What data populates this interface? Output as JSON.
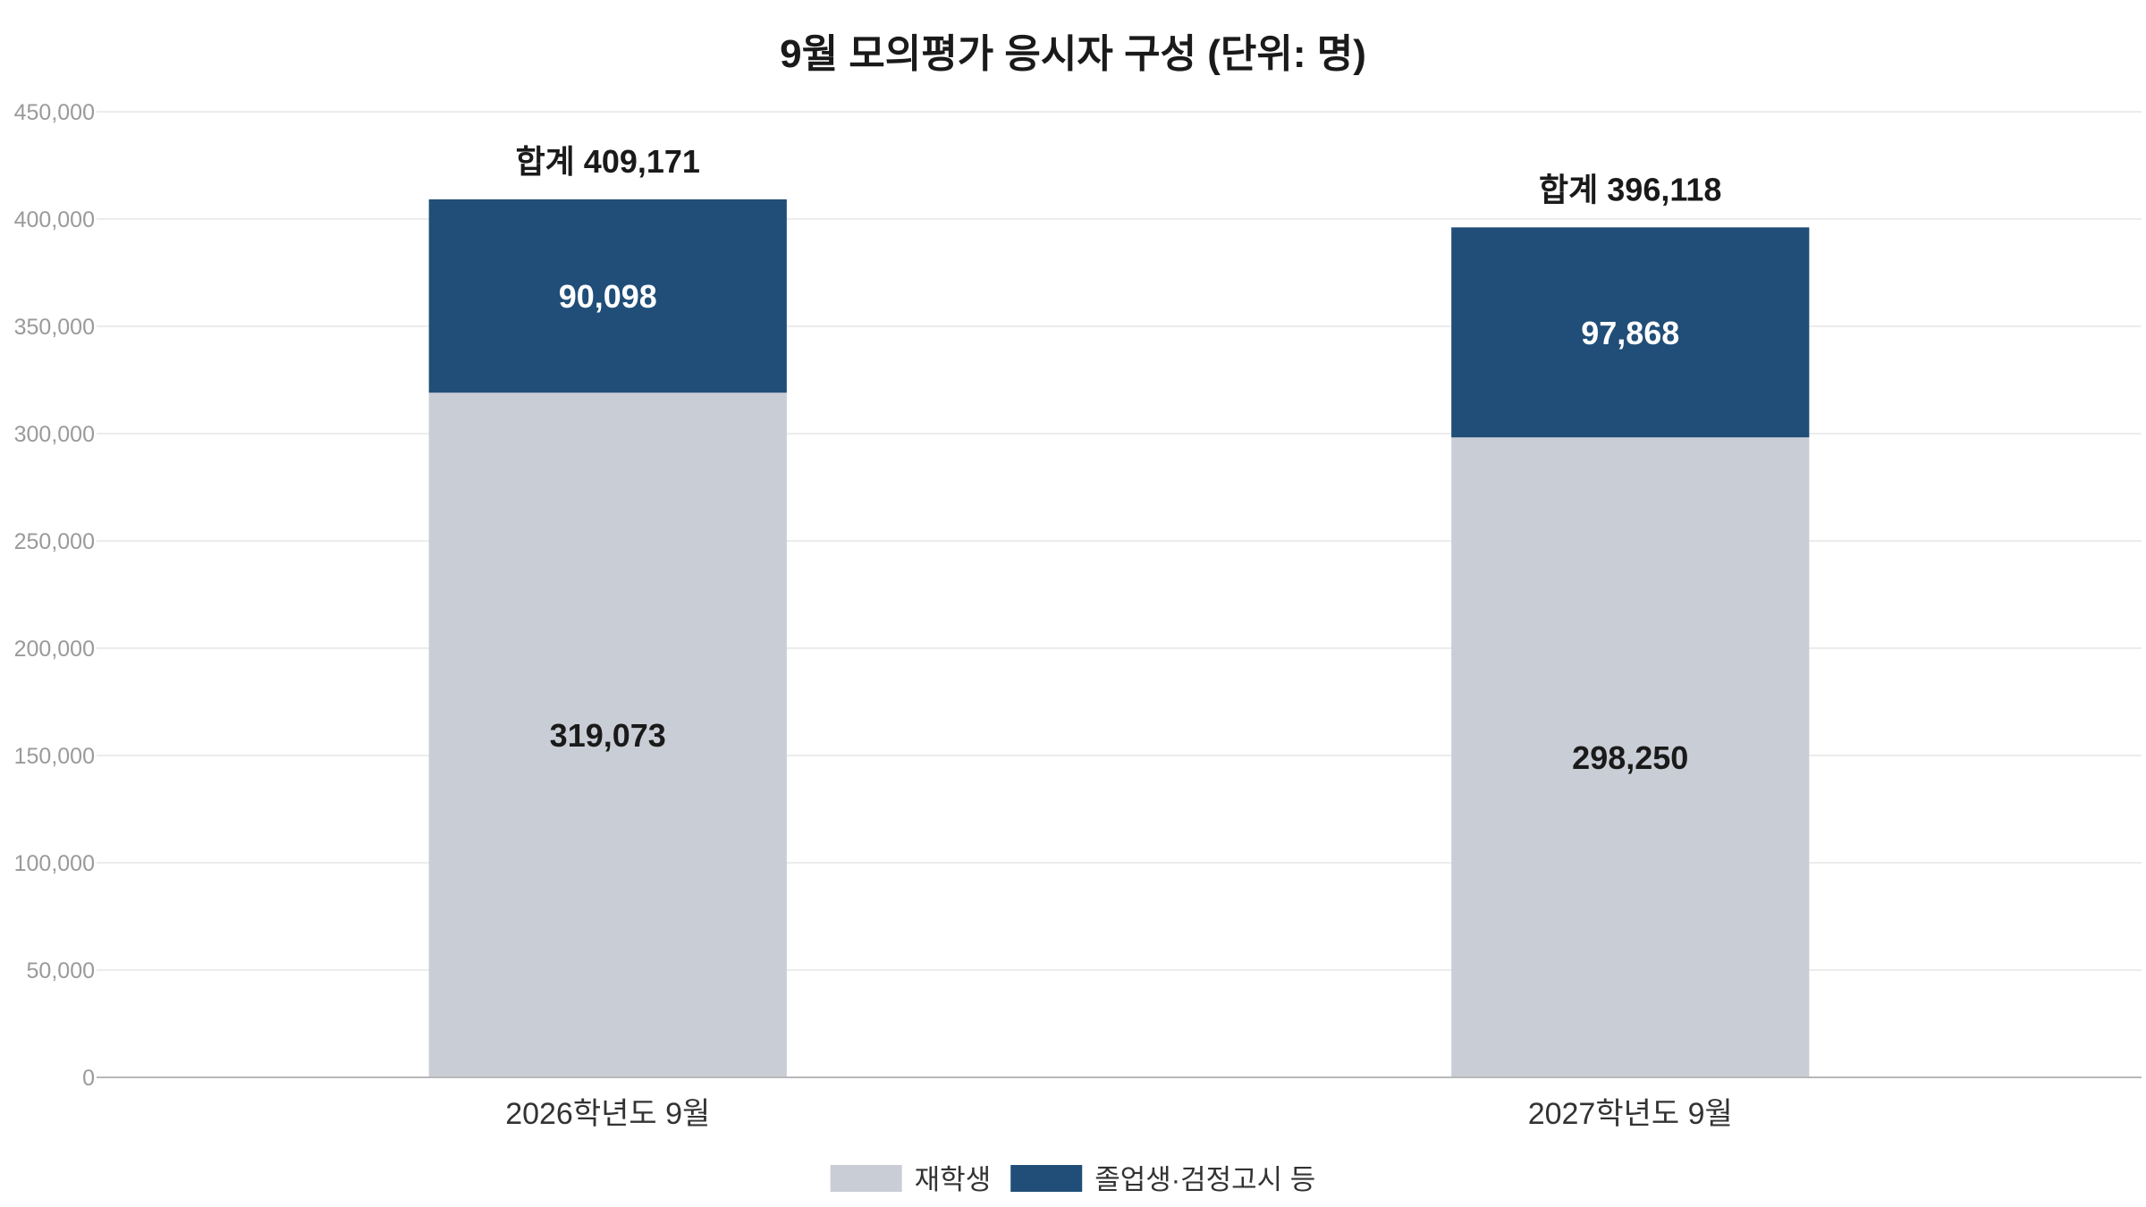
{
  "chart_data": {
    "type": "bar",
    "stacked": true,
    "title": "9월 모의평가 응시자 구성 (단위: 명)",
    "categories": [
      "2026학년도 9월",
      "2027학년도 9월"
    ],
    "series": [
      {
        "name": "재학생",
        "values": [
          319073,
          298250
        ],
        "color": "#c9cdd5",
        "label_color": "#1a1a1a",
        "labels": [
          "319,073",
          "298,250"
        ]
      },
      {
        "name": "졸업생·검정고시 등",
        "values": [
          90098,
          97868
        ],
        "color": "#204e78",
        "label_color": "#ffffff",
        "labels": [
          "90,098",
          "97,868"
        ]
      }
    ],
    "totals": [
      409171,
      396118
    ],
    "total_labels": [
      "합계 409,171",
      "합계 396,118"
    ],
    "ylim": [
      0,
      450000
    ],
    "yticks": [
      0,
      50000,
      100000,
      150000,
      200000,
      250000,
      300000,
      350000,
      400000,
      450000
    ],
    "ytick_labels": [
      "0",
      "50,000",
      "100,000",
      "150,000",
      "200,000",
      "250,000",
      "300,000",
      "350,000",
      "400,000",
      "450,000"
    ],
    "grid": true,
    "legend_position": "bottom-center"
  }
}
